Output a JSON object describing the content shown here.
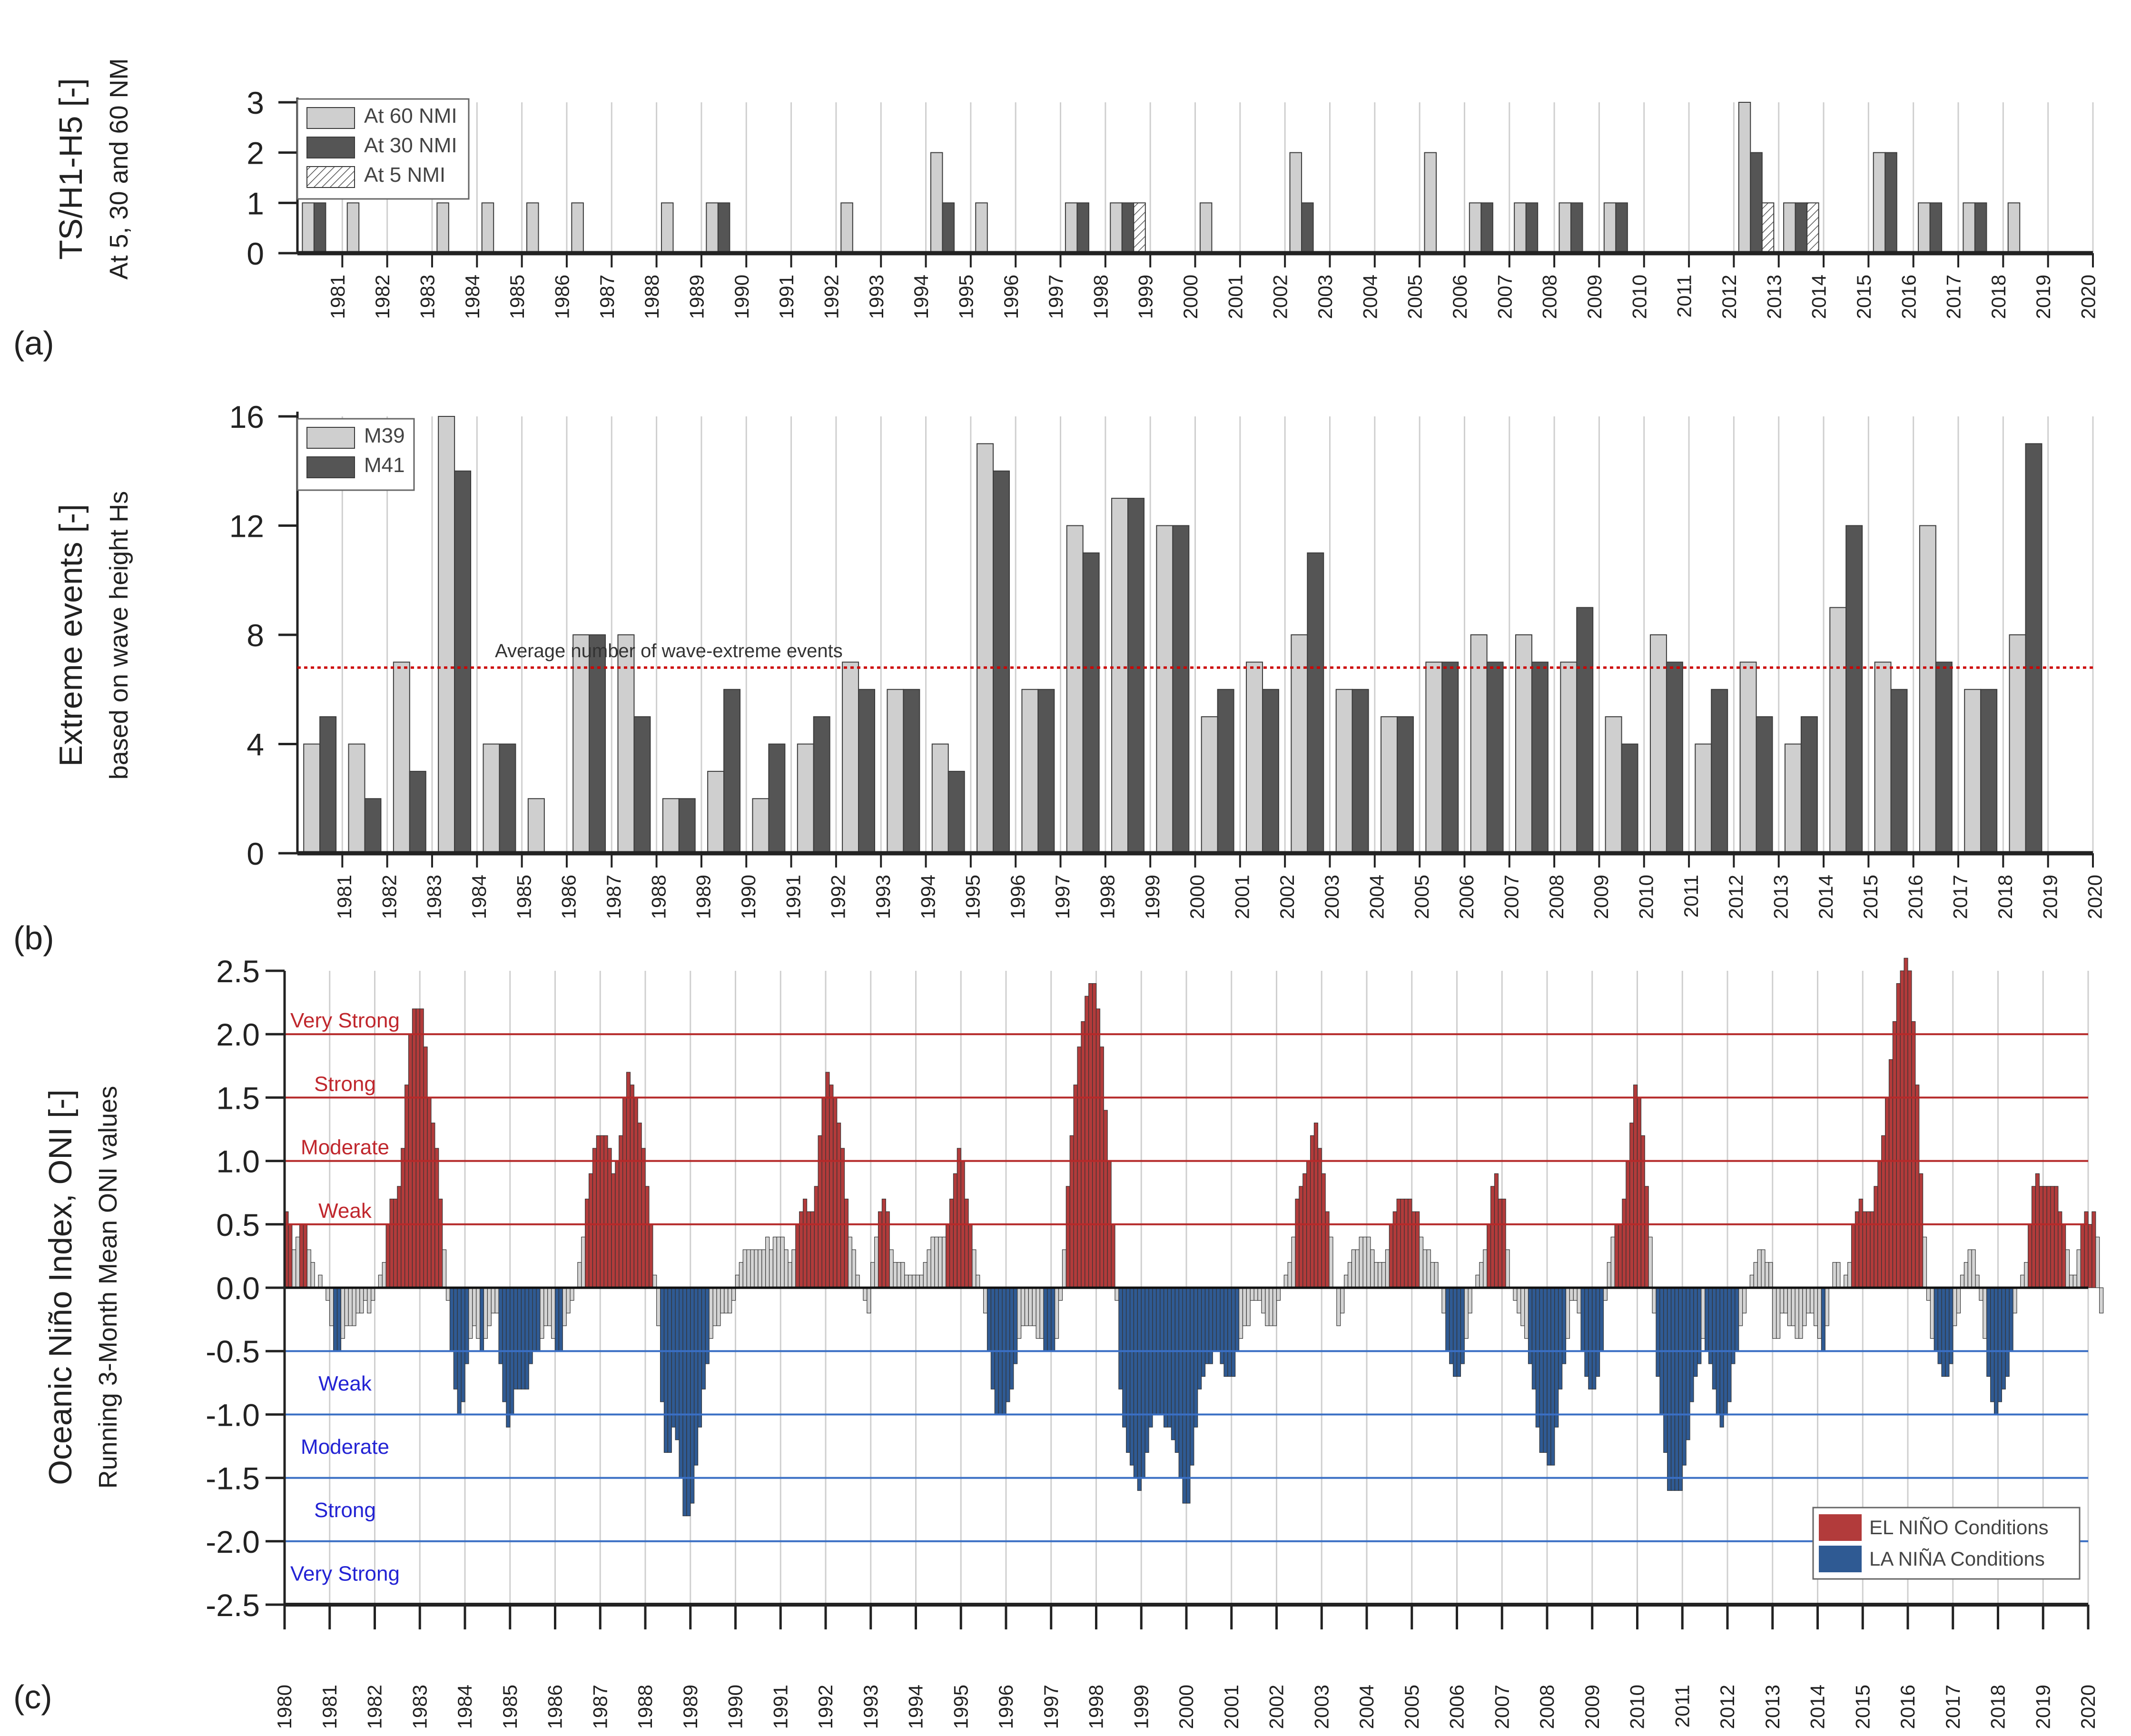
{
  "panel_labels": [
    "(a)",
    "(b)",
    "(c)"
  ],
  "colors": {
    "light_bar": "#cfcfcf",
    "dark_bar": "#555555",
    "bar_edge": "#3a3a3a",
    "el_nino": "#b23b3b",
    "la_nina": "#2f5a93",
    "neutral": "#d4d4d4",
    "red_line": "#b52a2a",
    "blue_line": "#3a6fc4",
    "avg_line": "#cc0000",
    "grid": "#cfcfcf",
    "red_text": "#c0272d",
    "blue_text": "#2323d4"
  },
  "chart_data": [
    {
      "type": "bar",
      "ylabel": "TS/H1-H5 [-]",
      "ylabel2": "At 5, 30 and 60 NM",
      "ylim": [
        0,
        3
      ],
      "yticks": [
        "0",
        "1",
        "2",
        "3"
      ],
      "categories": [
        "1981",
        "1982",
        "1983",
        "1984",
        "1985",
        "1986",
        "1987",
        "1988",
        "1989",
        "1990",
        "1991",
        "1992",
        "1993",
        "1994",
        "1995",
        "1996",
        "1997",
        "1998",
        "1999",
        "2000",
        "2001",
        "2002",
        "2003",
        "2004",
        "2005",
        "2006",
        "2007",
        "2008",
        "2009",
        "2010",
        "2011",
        "2012",
        "2013",
        "2014",
        "2015",
        "2016",
        "2017",
        "2018",
        "2019",
        "2020"
      ],
      "legend_position": "top-left",
      "series": [
        {
          "name": "At 60 NMI",
          "values": [
            1,
            1,
            0,
            1,
            1,
            1,
            1,
            0,
            1,
            1,
            0,
            0,
            1,
            0,
            2,
            1,
            0,
            1,
            1,
            0,
            1,
            0,
            2,
            0,
            0,
            2,
            1,
            1,
            1,
            1,
            0,
            0,
            3,
            1,
            0,
            2,
            1,
            1,
            1,
            0
          ]
        },
        {
          "name": "At 30 NMI",
          "values": [
            1,
            0,
            0,
            0,
            0,
            0,
            0,
            0,
            0,
            1,
            0,
            0,
            0,
            0,
            1,
            0,
            0,
            1,
            1,
            0,
            0,
            0,
            1,
            0,
            0,
            0,
            1,
            1,
            1,
            1,
            0,
            0,
            2,
            1,
            0,
            2,
            1,
            1,
            0,
            0
          ]
        },
        {
          "name": "At 5 NMI",
          "values": [
            0,
            0,
            0,
            0,
            0,
            0,
            0,
            0,
            0,
            0,
            0,
            0,
            0,
            0,
            0,
            0,
            0,
            0,
            1,
            0,
            0,
            0,
            0,
            0,
            0,
            0,
            0,
            0,
            0,
            0,
            0,
            0,
            1,
            1,
            0,
            0,
            0,
            0,
            0,
            0
          ]
        }
      ]
    },
    {
      "type": "bar",
      "ylabel": "Extreme events [-]",
      "ylabel2": "based on wave height Hs",
      "ylim": [
        0,
        16
      ],
      "yticks": [
        "0",
        "4",
        "8",
        "12",
        "16"
      ],
      "categories": [
        "1980",
        "1981",
        "1982",
        "1983",
        "1984",
        "1985",
        "1986",
        "1987",
        "1988",
        "1989",
        "1990",
        "1991",
        "1992",
        "1993",
        "1994",
        "1995",
        "1996",
        "1997",
        "1998",
        "1999",
        "2000",
        "2001",
        "2002",
        "2003",
        "2004",
        "2005",
        "2006",
        "2007",
        "2008",
        "2009",
        "2010",
        "2011",
        "2012",
        "2013",
        "2014",
        "2015",
        "2016",
        "2017",
        "2018",
        "2019"
      ],
      "tick_labels": [
        "1981",
        "1982",
        "1983",
        "1984",
        "1985",
        "1986",
        "1987",
        "1988",
        "1989",
        "1990",
        "1991",
        "1992",
        "1993",
        "1994",
        "1995",
        "1996",
        "1997",
        "1998",
        "1999",
        "2000",
        "2001",
        "2002",
        "2003",
        "2004",
        "2005",
        "2006",
        "2007",
        "2008",
        "2009",
        "2010",
        "2011",
        "2012",
        "2013",
        "2014",
        "2015",
        "2016",
        "2017",
        "2018",
        "2019",
        "2020"
      ],
      "legend_position": "top-left",
      "series": [
        {
          "name": "M39",
          "values": [
            4,
            4,
            7,
            16,
            4,
            2,
            8,
            8,
            2,
            3,
            2,
            4,
            7,
            6,
            4,
            15,
            6,
            12,
            13,
            12,
            5,
            7,
            8,
            6,
            5,
            7,
            8,
            8,
            7,
            5,
            8,
            4,
            7,
            4,
            9,
            7,
            12,
            6,
            8,
            0
          ]
        },
        {
          "name": "M41",
          "values": [
            5,
            2,
            3,
            14,
            4,
            0,
            8,
            5,
            2,
            6,
            4,
            5,
            6,
            6,
            3,
            14,
            6,
            11,
            13,
            12,
            6,
            6,
            11,
            6,
            5,
            7,
            7,
            7,
            9,
            4,
            7,
            6,
            5,
            5,
            12,
            6,
            7,
            6,
            15,
            0
          ]
        }
      ],
      "average_line": {
        "value": 6.8,
        "label": "Average number of wave-extreme events"
      }
    },
    {
      "type": "bar",
      "ylabel": "Oceanic Niño Index, ONI [-]",
      "ylabel2": "Running 3-Month Mean ONI values",
      "ylim": [
        -2.5,
        2.5
      ],
      "yticks": [
        "-2.5",
        "-2.0",
        "-1.5",
        "-1.0",
        "-0.5",
        "0.0",
        "0.5",
        "1.0",
        "1.5",
        "2.0",
        "2.5"
      ],
      "x_start": 1980,
      "categories": [
        "1980",
        "1981",
        "1982",
        "1983",
        "1984",
        "1985",
        "1986",
        "1987",
        "1988",
        "1989",
        "1990",
        "1991",
        "1992",
        "1993",
        "1994",
        "1995",
        "1996",
        "1997",
        "1998",
        "1999",
        "2000",
        "2001",
        "2002",
        "2003",
        "2004",
        "2005",
        "2006",
        "2007",
        "2008",
        "2009",
        "2010",
        "2011",
        "2012",
        "2013",
        "2014",
        "2015",
        "2016",
        "2017",
        "2018",
        "2019",
        "2020"
      ],
      "thresholds": [
        {
          "value": 2.0,
          "label": "Very Strong",
          "side": "el_nino"
        },
        {
          "value": 1.5,
          "label": "Strong",
          "side": "el_nino"
        },
        {
          "value": 1.0,
          "label": "Moderate",
          "side": "el_nino"
        },
        {
          "value": 0.5,
          "label": "Weak",
          "side": "el_nino"
        },
        {
          "value": -0.5,
          "label": "Weak",
          "side": "la_nina"
        },
        {
          "value": -1.0,
          "label": "Moderate",
          "side": "la_nina"
        },
        {
          "value": -1.5,
          "label": "Strong",
          "side": "la_nina"
        },
        {
          "value": -2.0,
          "label": "Very Strong",
          "side": "la_nina"
        }
      ],
      "legend_position": "bottom-right",
      "legend": [
        {
          "name": "EL NIÑO Conditions",
          "key": "el_nino"
        },
        {
          "name": "LA NIÑA Conditions",
          "key": "la_nina"
        }
      ],
      "monthly_values": [
        0.6,
        0.5,
        0.3,
        0.4,
        0.5,
        0.5,
        0.3,
        0.2,
        0.0,
        0.1,
        0.0,
        -0.1,
        -0.3,
        -0.5,
        -0.5,
        -0.4,
        -0.3,
        -0.3,
        -0.3,
        -0.2,
        -0.2,
        -0.1,
        -0.2,
        -0.1,
        0.0,
        0.1,
        0.2,
        0.5,
        0.7,
        0.7,
        0.8,
        1.1,
        1.6,
        2.0,
        2.2,
        2.2,
        2.2,
        1.9,
        1.5,
        1.3,
        1.1,
        0.7,
        0.3,
        -0.1,
        -0.5,
        -0.8,
        -1.0,
        -0.9,
        -0.6,
        -0.4,
        -0.3,
        -0.4,
        -0.5,
        -0.4,
        -0.3,
        -0.2,
        -0.2,
        -0.6,
        -0.9,
        -1.1,
        -1.0,
        -0.8,
        -0.8,
        -0.8,
        -0.8,
        -0.6,
        -0.5,
        -0.5,
        -0.4,
        -0.3,
        -0.3,
        -0.4,
        -0.5,
        -0.5,
        -0.3,
        -0.2,
        -0.1,
        0.0,
        0.2,
        0.4,
        0.7,
        0.9,
        1.1,
        1.2,
        1.2,
        1.2,
        1.1,
        0.9,
        1.0,
        1.2,
        1.5,
        1.7,
        1.6,
        1.5,
        1.3,
        1.1,
        0.8,
        0.5,
        0.1,
        -0.3,
        -0.9,
        -1.3,
        -1.3,
        -1.1,
        -1.2,
        -1.5,
        -1.8,
        -1.8,
        -1.7,
        -1.4,
        -1.1,
        -0.8,
        -0.6,
        -0.4,
        -0.3,
        -0.3,
        -0.2,
        -0.2,
        -0.2,
        -0.1,
        0.1,
        0.2,
        0.3,
        0.3,
        0.3,
        0.3,
        0.3,
        0.3,
        0.4,
        0.3,
        0.4,
        0.4,
        0.4,
        0.3,
        0.2,
        0.3,
        0.5,
        0.6,
        0.7,
        0.6,
        0.6,
        0.8,
        1.2,
        1.5,
        1.7,
        1.6,
        1.5,
        1.3,
        1.1,
        0.7,
        0.4,
        0.3,
        0.1,
        0.0,
        -0.1,
        -0.2,
        0.2,
        0.4,
        0.6,
        0.7,
        0.6,
        0.3,
        0.2,
        0.2,
        0.2,
        0.1,
        0.1,
        0.1,
        0.1,
        0.1,
        0.2,
        0.3,
        0.4,
        0.4,
        0.4,
        0.4,
        0.5,
        0.7,
        0.9,
        1.1,
        1.0,
        0.7,
        0.5,
        0.3,
        0.1,
        0.0,
        -0.2,
        -0.5,
        -0.8,
        -1.0,
        -1.0,
        -1.0,
        -0.9,
        -0.8,
        -0.6,
        -0.4,
        -0.3,
        -0.3,
        -0.3,
        -0.3,
        -0.4,
        -0.4,
        -0.5,
        -0.5,
        -0.5,
        -0.4,
        -0.1,
        0.3,
        0.8,
        1.2,
        1.6,
        1.9,
        2.1,
        2.3,
        2.4,
        2.4,
        2.2,
        1.9,
        1.4,
        1.0,
        0.5,
        -0.1,
        -0.8,
        -1.1,
        -1.3,
        -1.4,
        -1.5,
        -1.6,
        -1.5,
        -1.3,
        -1.1,
        -1.0,
        -1.0,
        -1.0,
        -1.1,
        -1.1,
        -1.2,
        -1.3,
        -1.5,
        -1.7,
        -1.7,
        -1.4,
        -1.1,
        -0.8,
        -0.7,
        -0.6,
        -0.6,
        -0.5,
        -0.5,
        -0.6,
        -0.7,
        -0.7,
        -0.7,
        -0.5,
        -0.4,
        -0.3,
        -0.3,
        -0.1,
        -0.1,
        -0.1,
        -0.2,
        -0.3,
        -0.3,
        -0.3,
        -0.1,
        0.0,
        0.1,
        0.2,
        0.4,
        0.7,
        0.8,
        0.9,
        1.0,
        1.2,
        1.3,
        1.1,
        0.9,
        0.6,
        0.4,
        0.0,
        -0.3,
        -0.2,
        0.1,
        0.2,
        0.3,
        0.3,
        0.4,
        0.4,
        0.4,
        0.3,
        0.2,
        0.2,
        0.2,
        0.3,
        0.5,
        0.6,
        0.7,
        0.7,
        0.7,
        0.7,
        0.6,
        0.6,
        0.4,
        0.3,
        0.3,
        0.2,
        0.2,
        0.0,
        -0.2,
        -0.5,
        -0.6,
        -0.7,
        -0.7,
        -0.6,
        -0.4,
        -0.2,
        0.0,
        0.1,
        0.2,
        0.3,
        0.5,
        0.8,
        0.9,
        0.7,
        0.7,
        0.3,
        0.0,
        -0.1,
        -0.2,
        -0.3,
        -0.4,
        -0.6,
        -0.8,
        -1.1,
        -1.3,
        -1.3,
        -1.4,
        -1.4,
        -1.1,
        -0.8,
        -0.6,
        -0.4,
        -0.1,
        -0.1,
        -0.2,
        -0.5,
        -0.7,
        -0.8,
        -0.8,
        -0.7,
        -0.5,
        -0.1,
        0.2,
        0.4,
        0.5,
        0.5,
        0.7,
        1.0,
        1.3,
        1.6,
        1.5,
        1.2,
        0.8,
        0.4,
        -0.2,
        -0.7,
        -1.0,
        -1.3,
        -1.6,
        -1.6,
        -1.6,
        -1.6,
        -1.4,
        -1.2,
        -0.9,
        -0.7,
        -0.6,
        -0.4,
        -0.5,
        -0.6,
        -0.8,
        -1.0,
        -1.1,
        -1.0,
        -0.9,
        -0.6,
        -0.5,
        -0.3,
        -0.2,
        0.0,
        0.1,
        0.2,
        0.3,
        0.3,
        0.2,
        0.2,
        -0.4,
        -0.4,
        -0.2,
        -0.2,
        -0.3,
        -0.3,
        -0.4,
        -0.4,
        -0.3,
        -0.2,
        -0.2,
        -0.3,
        -0.4,
        -0.5,
        -0.3,
        0.0,
        0.2,
        0.2,
        0.0,
        0.1,
        0.2,
        0.5,
        0.6,
        0.7,
        0.6,
        0.6,
        0.6,
        0.8,
        1.0,
        1.2,
        1.5,
        1.8,
        2.1,
        2.4,
        2.5,
        2.6,
        2.5,
        2.1,
        1.6,
        0.9,
        0.4,
        -0.1,
        -0.4,
        -0.5,
        -0.6,
        -0.7,
        -0.7,
        -0.6,
        -0.3,
        -0.2,
        0.1,
        0.2,
        0.3,
        0.3,
        0.1,
        -0.1,
        -0.4,
        -0.7,
        -0.9,
        -1.0,
        -0.9,
        -0.8,
        -0.7,
        -0.5,
        -0.2,
        0.0,
        0.1,
        0.2,
        0.5,
        0.8,
        0.9,
        0.8,
        0.8,
        0.8,
        0.8,
        0.8,
        0.6,
        0.5,
        0.3,
        0.1,
        0.1,
        0.3,
        0.5,
        0.6,
        0.5,
        0.6,
        0.4,
        -0.2
      ]
    }
  ]
}
